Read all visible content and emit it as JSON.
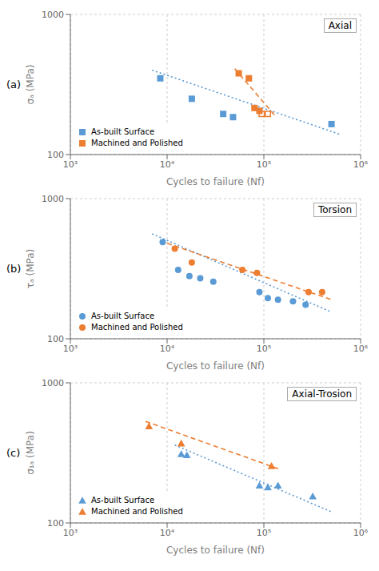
{
  "chart_data": [
    {
      "type": "scatter",
      "title": "Axial",
      "xlabel": "Cycles to failure (Nf)",
      "ylabel": "σₐ (MPa)",
      "annotations": [
        "(a)"
      ],
      "log": true,
      "grid": true,
      "legend": "lower left",
      "xlim": [
        1000,
        1000000
      ],
      "ylim": [
        100,
        1000
      ],
      "xticks": [
        {
          "value": 1000,
          "label": "10³"
        },
        {
          "value": 10000,
          "label": "10⁴"
        },
        {
          "value": 100000,
          "label": "10⁵"
        },
        {
          "value": 1000000,
          "label": "10⁶"
        }
      ],
      "yticks": [
        100,
        1000
      ],
      "series": [
        {
          "type": "line",
          "line_style": "dotted",
          "color": "#5B9BD5",
          "x": [
            7000,
            600000
          ],
          "values": [
            400,
            140
          ]
        },
        {
          "type": "line",
          "line_style": "dashed",
          "color": "#ED7D31",
          "x": [
            50000,
            130000
          ],
          "values": [
            410,
            190
          ]
        },
        {
          "type": "scatter",
          "name": "As-built Surface",
          "marker": "square",
          "color": "#5B9BD5",
          "x": [
            8500,
            18000,
            38000,
            48000,
            500000
          ],
          "values": [
            350,
            250,
            195,
            185,
            165
          ]
        },
        {
          "type": "scatter",
          "name": "Machined and Polished",
          "marker": "square",
          "color": "#ED7D31",
          "x": [
            55000,
            70000,
            80000,
            90000
          ],
          "values": [
            380,
            350,
            215,
            205
          ]
        },
        {
          "type": "scatter",
          "marker": "square-open",
          "color": "#ED7D31",
          "x": [
            95000,
            110000
          ],
          "values": [
            195,
            195
          ]
        }
      ]
    },
    {
      "type": "scatter",
      "title": "Torsion",
      "xlabel": "Cycles to failure (Nf)",
      "ylabel": "τₐ (MPa)",
      "annotations": [
        "(b)"
      ],
      "log": true,
      "grid": true,
      "legend": "lower left",
      "xlim": [
        1000,
        1000000
      ],
      "ylim": [
        100,
        1000
      ],
      "xticks": [
        {
          "value": 1000,
          "label": "10³"
        },
        {
          "value": 10000,
          "label": "10⁴"
        },
        {
          "value": 100000,
          "label": "10⁵"
        },
        {
          "value": 1000000,
          "label": "10⁶"
        }
      ],
      "yticks": [
        100,
        1000
      ],
      "series": [
        {
          "type": "line",
          "line_style": "dotted",
          "color": "#5B9BD5",
          "x": [
            7000,
            500000
          ],
          "values": [
            560,
            155
          ]
        },
        {
          "type": "line",
          "line_style": "dashed",
          "color": "#ED7D31",
          "x": [
            10000,
            500000
          ],
          "values": [
            480,
            190
          ]
        },
        {
          "type": "scatter",
          "name": "As-built Surface",
          "marker": "circle",
          "color": "#5B9BD5",
          "x": [
            9000,
            13000,
            17000,
            22000,
            30000,
            90000,
            110000,
            140000,
            200000,
            270000
          ],
          "values": [
            490,
            310,
            280,
            270,
            255,
            215,
            195,
            190,
            185,
            175
          ]
        },
        {
          "type": "scatter",
          "name": "Machined and Polished",
          "marker": "circle",
          "color": "#ED7D31",
          "x": [
            12000,
            18000,
            60000,
            85000,
            290000,
            400000
          ],
          "values": [
            440,
            350,
            310,
            295,
            215,
            215
          ]
        }
      ]
    },
    {
      "type": "scatter",
      "title": "Axial-Trosion",
      "xlabel": "Cycles to failure (Nf)",
      "ylabel": "σ₁ₐ (MPa)",
      "annotations": [
        "(c)"
      ],
      "log": true,
      "grid": true,
      "legend": "lower left",
      "xlim": [
        1000,
        1000000
      ],
      "ylim": [
        100,
        1000
      ],
      "xticks": [
        {
          "value": 1000,
          "label": "10³"
        },
        {
          "value": 10000,
          "label": "10⁴"
        },
        {
          "value": 100000,
          "label": "10⁵"
        },
        {
          "value": 1000000,
          "label": "10⁶"
        }
      ],
      "yticks": [
        100,
        1000
      ],
      "series": [
        {
          "type": "line",
          "line_style": "dotted",
          "color": "#5B9BD5",
          "x": [
            12000,
            500000
          ],
          "values": [
            360,
            120
          ]
        },
        {
          "type": "line",
          "line_style": "dashed",
          "color": "#ED7D31",
          "x": [
            6000,
            150000
          ],
          "values": [
            530,
            240
          ]
        },
        {
          "type": "scatter",
          "name": "As-built Surface",
          "marker": "triangle",
          "color": "#5B9BD5",
          "x": [
            14000,
            16000,
            90000,
            110000,
            140000,
            320000
          ],
          "values": [
            310,
            305,
            185,
            180,
            185,
            155
          ]
        },
        {
          "type": "scatter",
          "name": "Machined and Polished",
          "marker": "triangle",
          "color": "#ED7D31",
          "x": [
            6500,
            14000,
            120000
          ],
          "values": [
            490,
            370,
            255
          ]
        }
      ]
    }
  ]
}
